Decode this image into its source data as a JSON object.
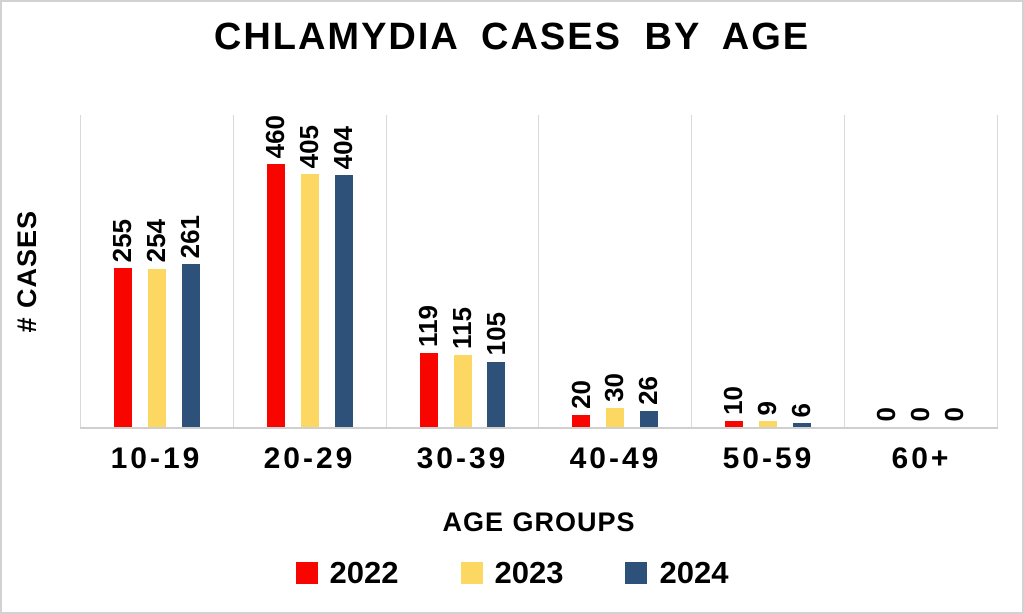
{
  "figure": {
    "background": "#ffffff",
    "border_color": "#d2d2d2"
  },
  "chart_data": {
    "type": "bar",
    "title": "CHLAMYDIA CASES BY AGE",
    "xlabel": "AGE GROUPS",
    "ylabel": "# CASES",
    "categories": [
      "10-19",
      "20-29",
      "30-39",
      "40-49",
      "50-59",
      "60+"
    ],
    "series": [
      {
        "name": "2022",
        "color": "#f90500",
        "values": [
          255,
          460,
          119,
          20,
          10,
          0
        ]
      },
      {
        "name": "2023",
        "color": "#fcd762",
        "values": [
          254,
          405,
          115,
          30,
          9,
          0
        ]
      },
      {
        "name": "2024",
        "color": "#2d5178",
        "values": [
          261,
          404,
          105,
          26,
          6,
          0
        ]
      }
    ],
    "ylim": [
      0,
      500
    ],
    "grid": "vertical-category-separators-only",
    "gridline_color": "#d9d9d9",
    "axis_line_color": "#cfcfcf",
    "data_labels": "rotated-90deg-above-bars",
    "label_color": "#000000",
    "legend_position": "bottom"
  }
}
